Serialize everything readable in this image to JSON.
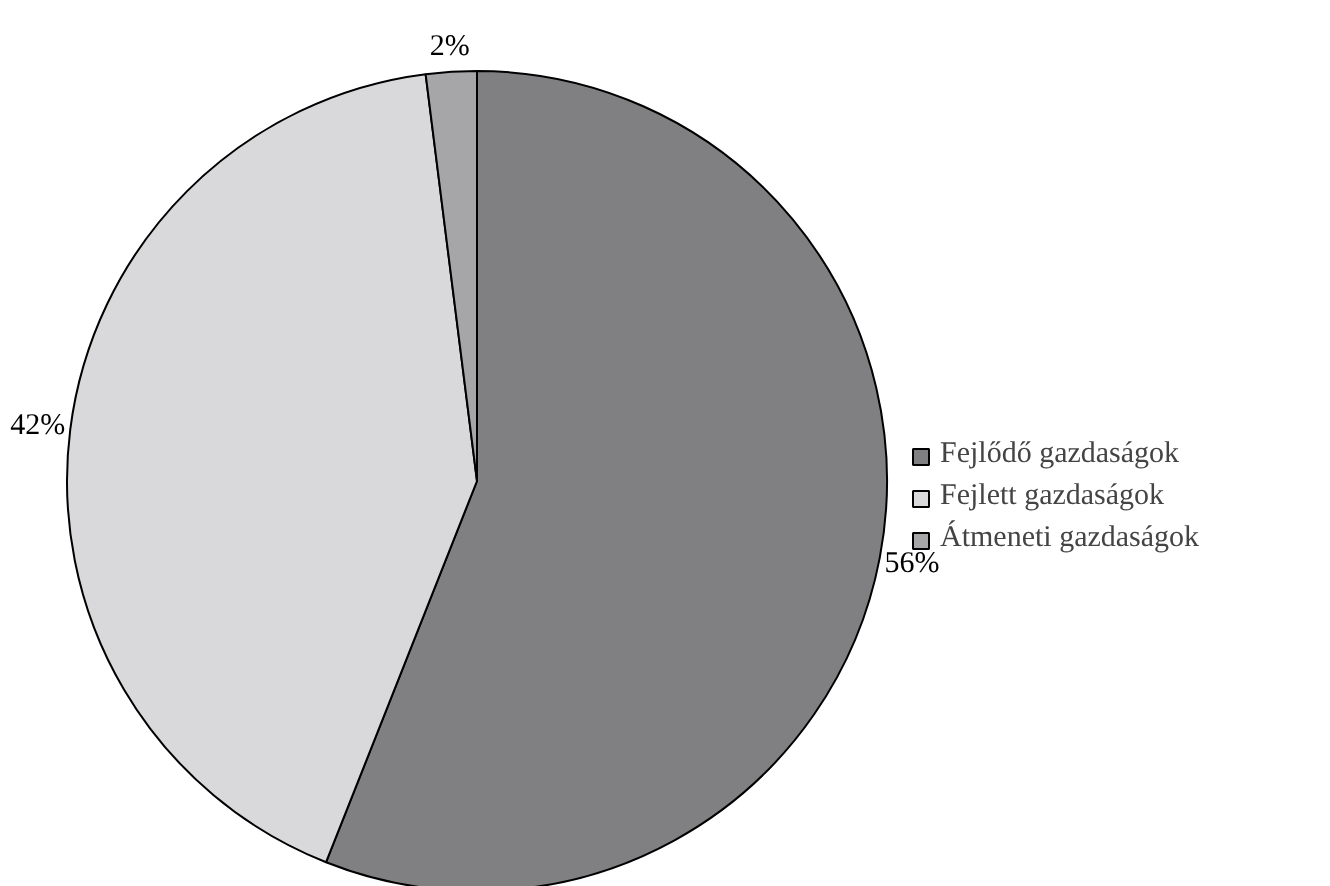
{
  "chart_data": {
    "type": "pie",
    "categories": [
      "Fejlődő gazdaságok",
      "Fejlett gazdaságok",
      "Átmeneti gazdaságok"
    ],
    "values": [
      56,
      42,
      2
    ],
    "colors": [
      "#808083",
      "#d9d9db",
      "#a6a6a8"
    ],
    "value_labels": [
      "56%",
      "42%",
      "2%"
    ],
    "legend": "right"
  }
}
